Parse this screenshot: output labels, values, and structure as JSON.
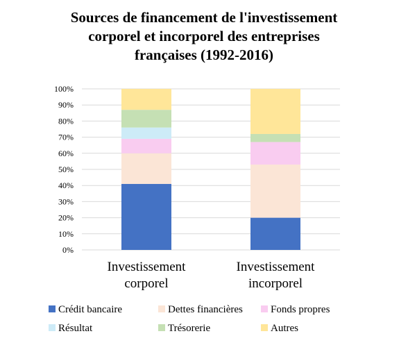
{
  "chart_data": {
    "type": "bar",
    "stacked": true,
    "title_lines": [
      "Sources de financement de l'investissement",
      "corporel et incorporel des entreprises",
      "françaises (1992-2016)"
    ],
    "categories": [
      [
        "Investissement",
        "corporel"
      ],
      [
        "Investissement",
        "incorporel"
      ]
    ],
    "ylim": [
      0,
      100
    ],
    "yticks": [
      "0%",
      "10%",
      "20%",
      "30%",
      "40%",
      "50%",
      "60%",
      "70%",
      "80%",
      "90%",
      "100%"
    ],
    "grid": true,
    "legend_position": "bottom",
    "series": [
      {
        "name": "Crédit bancaire",
        "color": "#4472C4",
        "values": [
          41,
          20
        ]
      },
      {
        "name": "Dettes financières",
        "color": "#FBE5D6",
        "values": [
          19,
          33
        ]
      },
      {
        "name": "Fonds propres",
        "color": "#F9CCF0",
        "values": [
          9,
          14
        ]
      },
      {
        "name": "Résultat",
        "color": "#CDEBF7",
        "values": [
          7,
          0
        ]
      },
      {
        "name": "Trésorerie",
        "color": "#C5E0B4",
        "values": [
          11,
          5
        ]
      },
      {
        "name": "Autres",
        "color": "#FFE699",
        "values": [
          13,
          28
        ]
      }
    ]
  }
}
